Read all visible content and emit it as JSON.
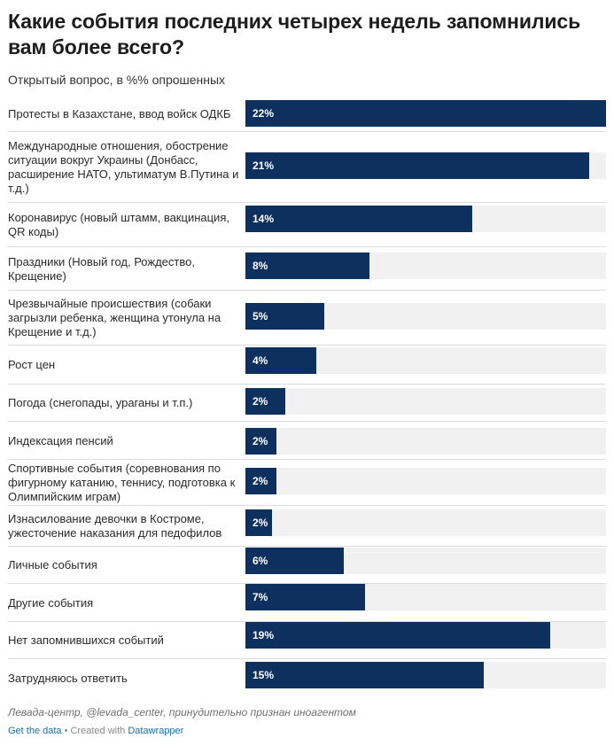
{
  "header": {
    "title": "Какие события последних четырех недель запомнились вам более всего?",
    "subtitle": "Открытый вопрос, в %% опрошенных"
  },
  "footer": {
    "source": "Левада-центр, @levada_center, принудительно признан иноагентом",
    "get_data": "Get the data",
    "separator": "•",
    "created_with": "Created with",
    "tool": "Datawrapper"
  },
  "colors": {
    "bar": "#0d305e",
    "track": "#f1f1f1",
    "link": "#1a6fa8"
  },
  "chart_data": {
    "type": "bar",
    "orientation": "horizontal",
    "xlim": [
      0,
      22
    ],
    "grid": false,
    "legend": "none",
    "categories": [
      "Протесты в Казахстане, ввод войск ОДКБ",
      "Международные отношения, обострение ситуации вокруг Украины (Донбасс, расширение НАТО, ультиматум В.Путина и т.д.)",
      "Коронавирус (новый штамм, вакцинация, QR коды)",
      "Праздники (Новый год, Рождество, Крещение)",
      "Чрезвычайные происшествия (собаки загрызли ребенка, женщина утонула на Крещение и т.д.)",
      "Рост цен",
      "Погода (снегопады, ураганы и т.п.)",
      "Индексация пенсий",
      "Спортивные события (соревнования по фигурному катанию, теннису, подготовка к Олимпийским играм)",
      "Изнасилование девочки в Костроме, ужесточение наказания для педофилов",
      "Личные события",
      "Другие события",
      "Нет запомнившихся событий",
      "Затрудняюсь ответить"
    ],
    "values": [
      22,
      21,
      14,
      8,
      5,
      4,
      2,
      2,
      2,
      2,
      6,
      7,
      19,
      15
    ],
    "value_labels": [
      "22%",
      "21%",
      "14%",
      "8%",
      "5%",
      "4%",
      "2%",
      "2%",
      "2%",
      "2%",
      "6%",
      "7%",
      "19%",
      "15%"
    ],
    "bar_fractions": [
      1.0,
      0.953,
      0.629,
      0.344,
      0.219,
      0.197,
      0.111,
      0.086,
      0.086,
      0.074,
      0.273,
      0.332,
      0.845,
      0.661
    ]
  }
}
